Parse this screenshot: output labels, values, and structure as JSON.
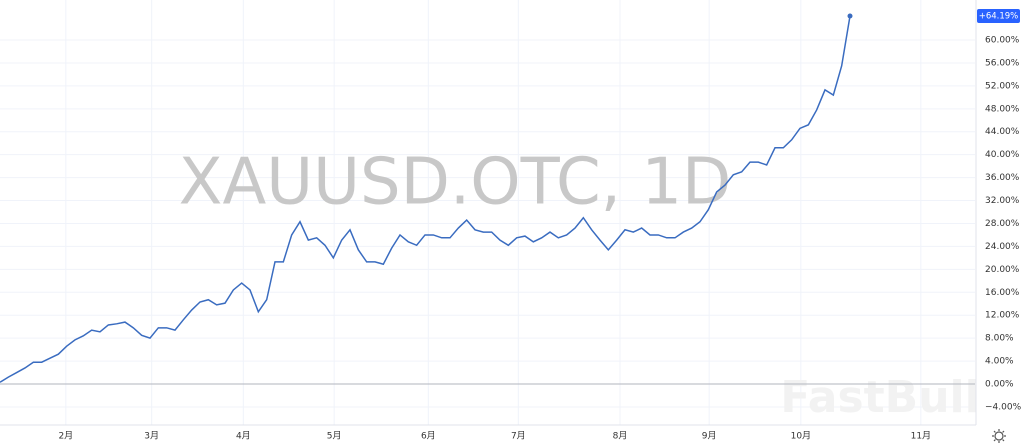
{
  "chart_data": {
    "type": "line",
    "watermark": "XAUUSD.OTC, 1D",
    "brand": "FastBull",
    "xlim": [
      0,
      117
    ],
    "xticks": [
      {
        "value": 7.9,
        "label": "2月"
      },
      {
        "value": 18.2,
        "label": "3月"
      },
      {
        "value": 29.2,
        "label": "4月"
      },
      {
        "value": 40.1,
        "label": "5月"
      },
      {
        "value": 51.4,
        "label": "6月"
      },
      {
        "value": 62.2,
        "label": "7月"
      },
      {
        "value": 74.4,
        "label": "8月"
      },
      {
        "value": 85.1,
        "label": "9月"
      },
      {
        "value": 96.1,
        "label": "10月"
      },
      {
        "value": 110.5,
        "label": "11月"
      }
    ],
    "ylim": [
      -7.15,
      66.98
    ],
    "yticks": [
      {
        "value": -4,
        "label": "−4.00%"
      },
      {
        "value": 0,
        "label": "0.00%"
      },
      {
        "value": 4,
        "label": "4.00%"
      },
      {
        "value": 8,
        "label": "8.00%"
      },
      {
        "value": 12,
        "label": "12.00%"
      },
      {
        "value": 16,
        "label": "16.00%"
      },
      {
        "value": 20,
        "label": "20.00%"
      },
      {
        "value": 24,
        "label": "24.00%"
      },
      {
        "value": 28,
        "label": "28.00%"
      },
      {
        "value": 32,
        "label": "32.00%"
      },
      {
        "value": 36,
        "label": "36.00%"
      },
      {
        "value": 40,
        "label": "40.00%"
      },
      {
        "value": 44,
        "label": "44.00%"
      },
      {
        "value": 48,
        "label": "48.00%"
      },
      {
        "value": 52,
        "label": "52.00%"
      },
      {
        "value": 56,
        "label": "56.00%"
      },
      {
        "value": 60,
        "label": "60.00%"
      }
    ],
    "grid": true,
    "color": "#3a6cc0",
    "last_value_label": "+64.19%",
    "values": [
      0.3,
      1.2,
      2,
      2.8,
      3.8,
      3.8,
      4.5,
      5.2,
      6.6,
      7.7,
      8.4,
      9.4,
      9.1,
      10.3,
      10.5,
      10.8,
      9.8,
      8.5,
      8,
      9.8,
      9.8,
      9.4,
      11.2,
      12.9,
      14.3,
      14.7,
      13.8,
      14.1,
      16.4,
      17.6,
      16.4,
      12.6,
      14.7,
      21.3,
      21.3,
      26,
      28.3,
      25.1,
      25.5,
      24.2,
      22,
      25.1,
      26.9,
      23.4,
      21.3,
      21.3,
      20.9,
      23.7,
      26,
      24.8,
      24.2,
      26,
      26,
      25.5,
      25.5,
      27.2,
      28.6,
      26.9,
      26.5,
      26.5,
      25.1,
      24.2,
      25.5,
      25.8,
      24.8,
      25.5,
      26.5,
      25.5,
      26,
      27.2,
      29,
      26.9,
      25.1,
      23.4,
      25.1,
      26.9,
      26.5,
      27.2,
      26,
      26,
      25.5,
      25.5,
      26.5,
      27.2,
      28.3,
      30.4,
      33.5,
      34.7,
      36.5,
      37,
      38.7,
      38.7,
      38.2,
      41.2,
      41.2,
      42.6,
      44.6,
      45.2,
      47.8,
      51.3,
      50.4,
      55.5,
      64.19
    ]
  }
}
